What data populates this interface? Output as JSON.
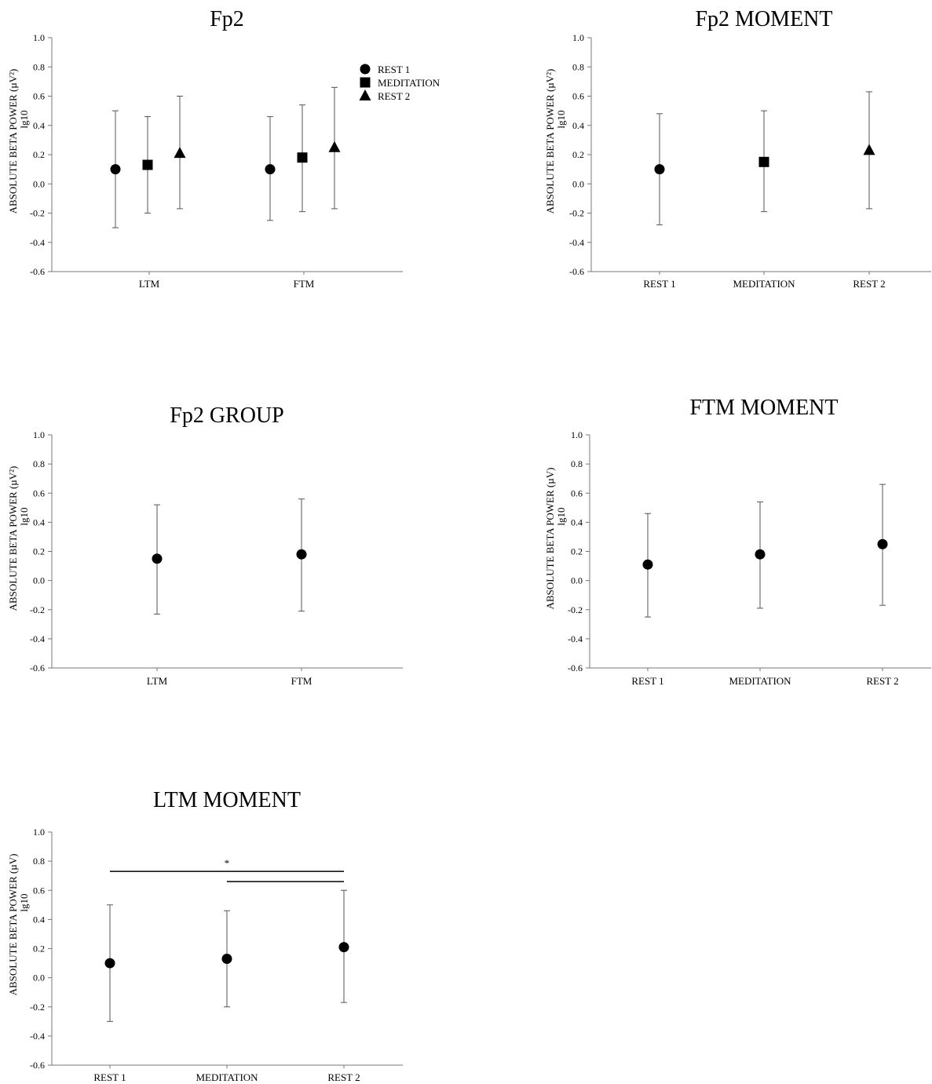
{
  "chart_data": [
    {
      "type": "scatter",
      "title": "Fp2",
      "ylabel": "ABSOLUTE BETA POWER (µV²)",
      "ylabel_sub": "lg10",
      "ylim": [
        -0.6,
        1.0
      ],
      "yticks": [
        "1.0",
        "0.8",
        "0.6",
        "0.4",
        "0.2",
        "0.0",
        "-0.2",
        "-0.4",
        "-0.6"
      ],
      "categories": [
        "LTM",
        "FTM"
      ],
      "legend": "top-right",
      "series": [
        {
          "name": "REST 1",
          "marker": "circle",
          "means": [
            0.1,
            0.1
          ],
          "upper": [
            0.5,
            0.46
          ],
          "lower": [
            -0.3,
            -0.25
          ]
        },
        {
          "name": "MEDITATION",
          "marker": "square",
          "means": [
            0.13,
            0.18
          ],
          "upper": [
            0.46,
            0.54
          ],
          "lower": [
            -0.2,
            -0.19
          ]
        },
        {
          "name": "REST 2",
          "marker": "triangle",
          "means": [
            0.21,
            0.25
          ],
          "upper": [
            0.6,
            0.66
          ],
          "lower": [
            -0.17,
            -0.17
          ]
        }
      ]
    },
    {
      "type": "scatter",
      "title": "Fp2 MOMENT",
      "ylabel": "ABSOLUTE BETA POWER (µV²)",
      "ylabel_sub": "lg10",
      "ylim": [
        -0.6,
        1.0
      ],
      "yticks": [
        "1.0",
        "0.8",
        "0.6",
        "0.4",
        "0.2",
        "0.0",
        "-0.2",
        "-0.4",
        "-0.6"
      ],
      "categories": [
        "REST 1",
        "MEDITATION",
        "REST 2"
      ],
      "markers": [
        "circle",
        "square",
        "triangle"
      ],
      "means": [
        0.1,
        0.15,
        0.23
      ],
      "upper": [
        0.48,
        0.5,
        0.63
      ],
      "lower": [
        -0.28,
        -0.19,
        -0.17
      ]
    },
    {
      "type": "scatter",
      "title": "Fp2 GROUP",
      "ylabel": "ABSOLUTE BETA POWER (µV²)",
      "ylabel_sub": "lg10",
      "ylim": [
        -0.6,
        1.0
      ],
      "yticks": [
        "1.0",
        "0.8",
        "0.6",
        "0.4",
        "0.2",
        "0.0",
        "-0.2",
        "-0.4",
        "-0.6"
      ],
      "categories": [
        "LTM",
        "FTM"
      ],
      "markers": [
        "circle",
        "circle"
      ],
      "means": [
        0.15,
        0.18
      ],
      "upper": [
        0.52,
        0.56
      ],
      "lower": [
        -0.23,
        -0.21
      ]
    },
    {
      "type": "scatter",
      "title": "FTM MOMENT",
      "ylabel": "ABSOLUTE BETA POWER (µV)",
      "ylabel_sub": "lg10",
      "ylim": [
        -0.6,
        1.0
      ],
      "yticks": [
        "1.0",
        "0.8",
        "0.6",
        "0.4",
        "0.2",
        "0.0",
        "-0.2",
        "-0.4",
        "-0.6"
      ],
      "categories": [
        "REST 1",
        "MEDITATION",
        "REST 2"
      ],
      "markers": [
        "circle",
        "circle",
        "circle"
      ],
      "means": [
        0.11,
        0.18,
        0.25
      ],
      "upper": [
        0.46,
        0.54,
        0.66
      ],
      "lower": [
        -0.25,
        -0.19,
        -0.17
      ]
    },
    {
      "type": "scatter",
      "title": "LTM MOMENT",
      "ylabel": "ABSOLUTE BETA POWER (µV)",
      "ylabel_sub": "lg10",
      "ylim": [
        -0.6,
        1.0
      ],
      "yticks": [
        "1.0",
        "0.8",
        "0.6",
        "0.4",
        "0.2",
        "0.0",
        "-0.2",
        "-0.4",
        "-0.6"
      ],
      "categories": [
        "REST 1",
        "MEDITATION",
        "REST 2"
      ],
      "markers": [
        "circle",
        "circle",
        "circle"
      ],
      "means": [
        0.1,
        0.13,
        0.21
      ],
      "upper": [
        0.5,
        0.46,
        0.6
      ],
      "lower": [
        -0.3,
        -0.2,
        -0.17
      ],
      "significance": [
        {
          "from": "REST 1",
          "to": "REST 2",
          "y": 0.73,
          "label": "*"
        },
        {
          "from": "MEDITATION",
          "to": "REST 2",
          "y": 0.66,
          "label": ""
        }
      ]
    }
  ]
}
